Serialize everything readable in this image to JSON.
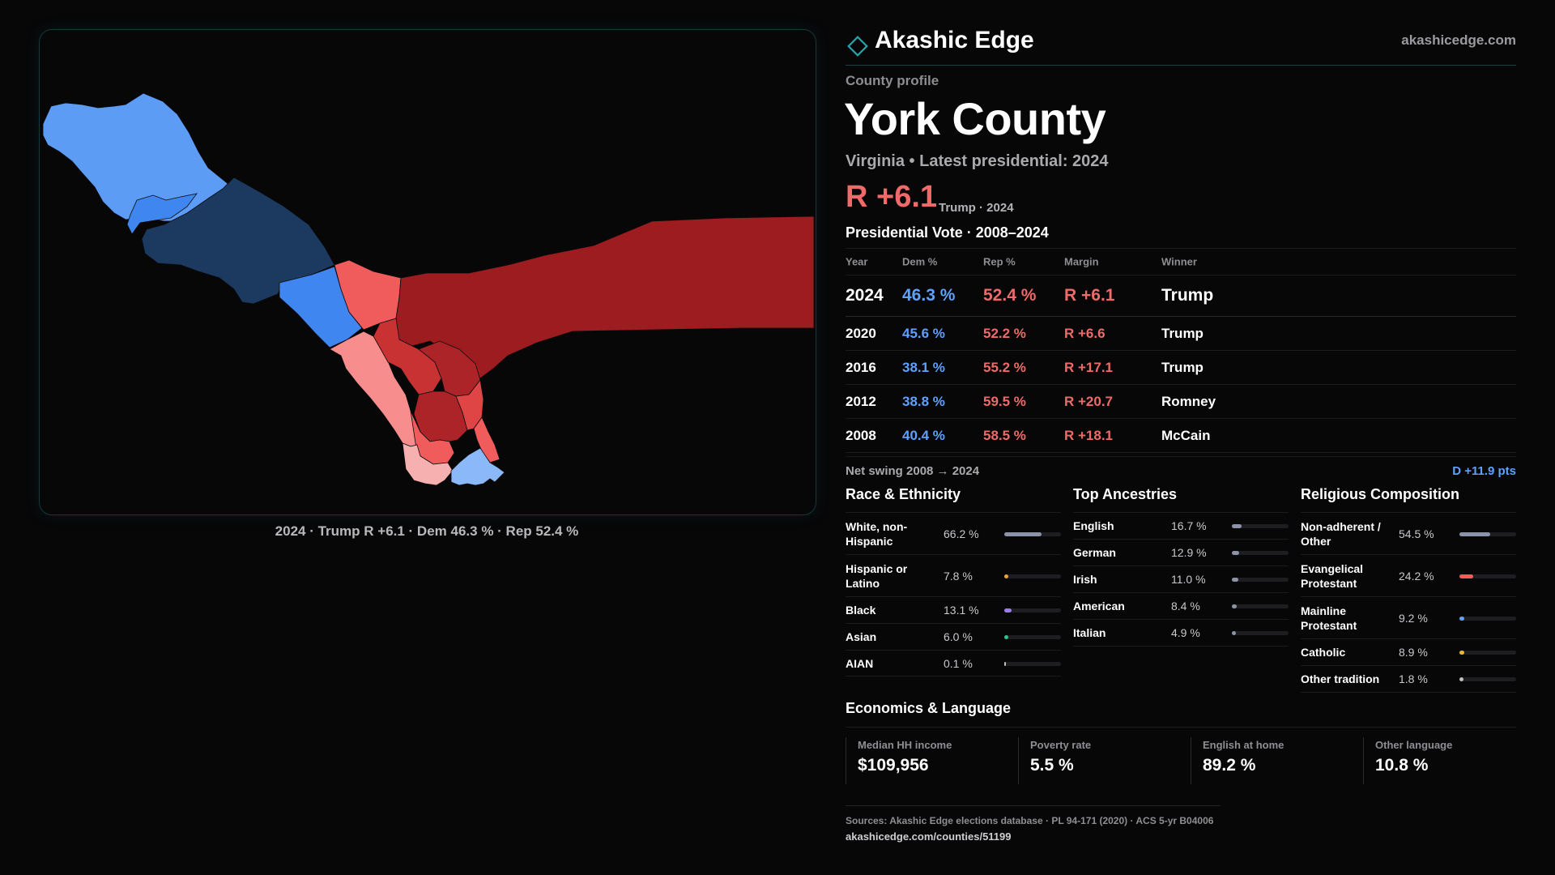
{
  "brand": {
    "name": "Akashic Edge",
    "url": "akashicedge.com"
  },
  "profile": {
    "kicker": "County profile",
    "county": "York County",
    "subtitle": "Virginia • Latest presidential: 2024",
    "headline_margin": "R +6.1",
    "headline_note": "Trump · 2024"
  },
  "map": {
    "caption": "2024 · Trump R +6.1 · Dem 46.3 % · Rep 52.4 %",
    "colors": {
      "lean_dem_light": "#5c9cf5",
      "dem_dark": "#1c3a60",
      "dem_mid": "#3f86f0",
      "rep_dark": "#9c1c1f",
      "rep_mid": "#f05b5b",
      "rep_light": "#f78d8d",
      "rep_pale": "#f6b0b0",
      "dem_pale": "#8ab8f8"
    }
  },
  "votes": {
    "title": "Presidential Vote · 2008–2024",
    "headers": {
      "year": "Year",
      "dem": "Dem %",
      "rep": "Rep %",
      "margin": "Margin",
      "winner": "Winner"
    },
    "rows": [
      {
        "year": "2024",
        "dem": "46.3 %",
        "rep": "52.4 %",
        "margin": "R +6.1",
        "winner": "Trump"
      },
      {
        "year": "2020",
        "dem": "45.6 %",
        "rep": "52.2 %",
        "margin": "R +6.6",
        "winner": "Trump"
      },
      {
        "year": "2016",
        "dem": "38.1 %",
        "rep": "55.2 %",
        "margin": "R +17.1",
        "winner": "Trump"
      },
      {
        "year": "2012",
        "dem": "38.8 %",
        "rep": "59.5 %",
        "margin": "R +20.7",
        "winner": "Romney"
      },
      {
        "year": "2008",
        "dem": "40.4 %",
        "rep": "58.5 %",
        "margin": "R +18.1",
        "winner": "McCain"
      }
    ],
    "net_swing_label": "Net swing 2008 → 2024",
    "net_swing_value": "D +11.9 pts"
  },
  "race": {
    "title": "Race & Ethnicity",
    "rows": [
      {
        "label": "White, non-Hispanic",
        "pct": "66.2 %",
        "value": 66.2,
        "color": "#8c93a8"
      },
      {
        "label": "Hispanic or Latino",
        "pct": "7.8 %",
        "value": 7.8,
        "color": "#e7a33a"
      },
      {
        "label": "Black",
        "pct": "13.1 %",
        "value": 13.1,
        "color": "#9b7cf0"
      },
      {
        "label": "Asian",
        "pct": "6.0 %",
        "value": 6.0,
        "color": "#34c08a"
      },
      {
        "label": "AIAN",
        "pct": "0.1 %",
        "value": 0.1,
        "color": "#c0c0c0"
      }
    ]
  },
  "ancestry": {
    "title": "Top Ancestries",
    "rows": [
      {
        "label": "English",
        "pct": "16.7 %",
        "value": 16.7,
        "color": "#8c93a8"
      },
      {
        "label": "German",
        "pct": "12.9 %",
        "value": 12.9,
        "color": "#8c93a8"
      },
      {
        "label": "Irish",
        "pct": "11.0 %",
        "value": 11.0,
        "color": "#8c93a8"
      },
      {
        "label": "American",
        "pct": "8.4 %",
        "value": 8.4,
        "color": "#8c93a8"
      },
      {
        "label": "Italian",
        "pct": "4.9 %",
        "value": 4.9,
        "color": "#8c93a8"
      }
    ]
  },
  "religion": {
    "title": "Religious Composition",
    "rows": [
      {
        "label": "Non-adherent / Other",
        "pct": "54.5 %",
        "value": 54.5,
        "color": "#8c93a8"
      },
      {
        "label": "Evangelical Protestant",
        "pct": "24.2 %",
        "value": 24.2,
        "color": "#f05b5b"
      },
      {
        "label": "Mainline Protestant",
        "pct": "9.2 %",
        "value": 9.2,
        "color": "#5fa1ff"
      },
      {
        "label": "Catholic",
        "pct": "8.9 %",
        "value": 8.9,
        "color": "#e7b53a"
      },
      {
        "label": "Other tradition",
        "pct": "1.8 %",
        "value": 1.8,
        "color": "#c0c0c0"
      }
    ]
  },
  "economics": {
    "title": "Economics & Language",
    "items": [
      {
        "label": "Median HH income",
        "value": "$109,956"
      },
      {
        "label": "Poverty rate",
        "value": "5.5 %"
      },
      {
        "label": "English at home",
        "value": "89.2 %"
      },
      {
        "label": "Other language",
        "value": "10.8 %"
      }
    ]
  },
  "footer": {
    "sources": "Sources: Akashic Edge elections database · PL 94-171 (2020) · ACS 5-yr B04006",
    "link": "akashicedge.com/counties/51199"
  }
}
